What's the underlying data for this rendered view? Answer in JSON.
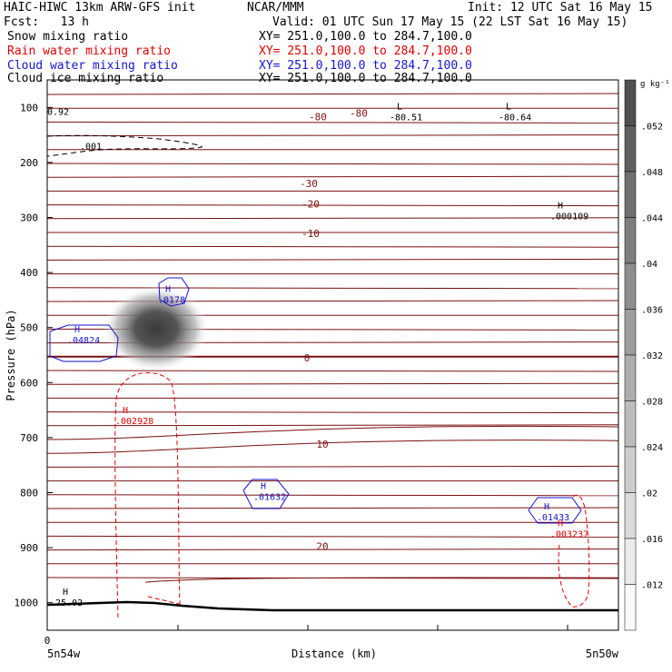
{
  "header": {
    "model": "HAIC-HIWC 13km ARW-GFS init",
    "org": "NCAR/MMM",
    "init": "Init: 12 UTC Sat 16 May 15",
    "fcst": "Fcst:   13 h",
    "valid": "Valid: 01 UTC Sun 17 May 15 (22 LST Sat 16 May 15)",
    "fields": [
      {
        "name": "Snow mixing ratio",
        "xy": "XY= 251.0,100.0 to 284.7,100.0",
        "color": "#000000"
      },
      {
        "name": "Rain water mixing ratio",
        "xy": "XY= 251.0,100.0 to 284.7,100.0",
        "color": "#e00000"
      },
      {
        "name": "Cloud water mixing ratio",
        "xy": "XY= 251.0,100.0 to 284.7,100.0",
        "color": "#1414d2"
      },
      {
        "name": "Cloud ice mixing ratio",
        "xy": "XY= 251.0,100.0 to 284.7,100.0",
        "color": "#000000"
      }
    ]
  },
  "chart_data": {
    "type": "cross-section",
    "ylabel": "Pressure (hPa)",
    "xlabel": "Distance (km)",
    "ylim": [
      1050,
      50
    ],
    "yticks": [
      100,
      200,
      300,
      400,
      500,
      600,
      700,
      800,
      900,
      1000
    ],
    "xtick_label": "0",
    "x_left_label": "5n54w",
    "x_right_label": "5n50w",
    "colorbar": {
      "units": "g kg⁻¹",
      "levels": [
        ".012",
        ".016",
        ".02",
        ".024",
        ".028",
        ".032",
        ".036",
        ".04",
        ".044",
        ".048",
        ".052"
      ]
    },
    "temperature_labels": [
      {
        "text": "-80",
        "p": 117
      },
      {
        "text": "-80",
        "p": 110
      },
      {
        "text": "-30",
        "p": 238
      },
      {
        "text": "-20",
        "p": 275
      },
      {
        "text": "-10",
        "p": 329
      },
      {
        "text": "0",
        "p": 555
      },
      {
        "text": "10",
        "p": 712
      },
      {
        "text": "20",
        "p": 897
      }
    ],
    "extrema": [
      {
        "kind": "L",
        "value": "-80.51",
        "p": 115,
        "field": "temperature"
      },
      {
        "kind": "L",
        "value": "-80.64",
        "p": 115,
        "field": "temperature"
      },
      {
        "kind": "H",
        "value": ".000109",
        "p": 295,
        "field": "snow"
      },
      {
        "kind": "H",
        "value": "25.02",
        "p": 997,
        "field": "temperature"
      },
      {
        "kind": "H",
        "value": ".0178",
        "p": 447,
        "field": "cloud_water"
      },
      {
        "kind": "H",
        "value": ".04824",
        "p": 520,
        "field": "cloud_water"
      },
      {
        "kind": "H",
        "value": ".01632",
        "p": 805,
        "field": "cloud_water"
      },
      {
        "kind": "H",
        "value": ".01433",
        "p": 842,
        "field": "cloud_water"
      },
      {
        "kind": "H",
        "value": ".002928",
        "p": 667,
        "field": "rain"
      },
      {
        "kind": "H",
        "value": ".003237",
        "p": 873,
        "field": "rain"
      }
    ],
    "contour_labels": [
      {
        "text": ".001",
        "p": 170,
        "field": "ice"
      },
      {
        "text": "0.92",
        "p": 107,
        "field": "temperature"
      }
    ]
  }
}
